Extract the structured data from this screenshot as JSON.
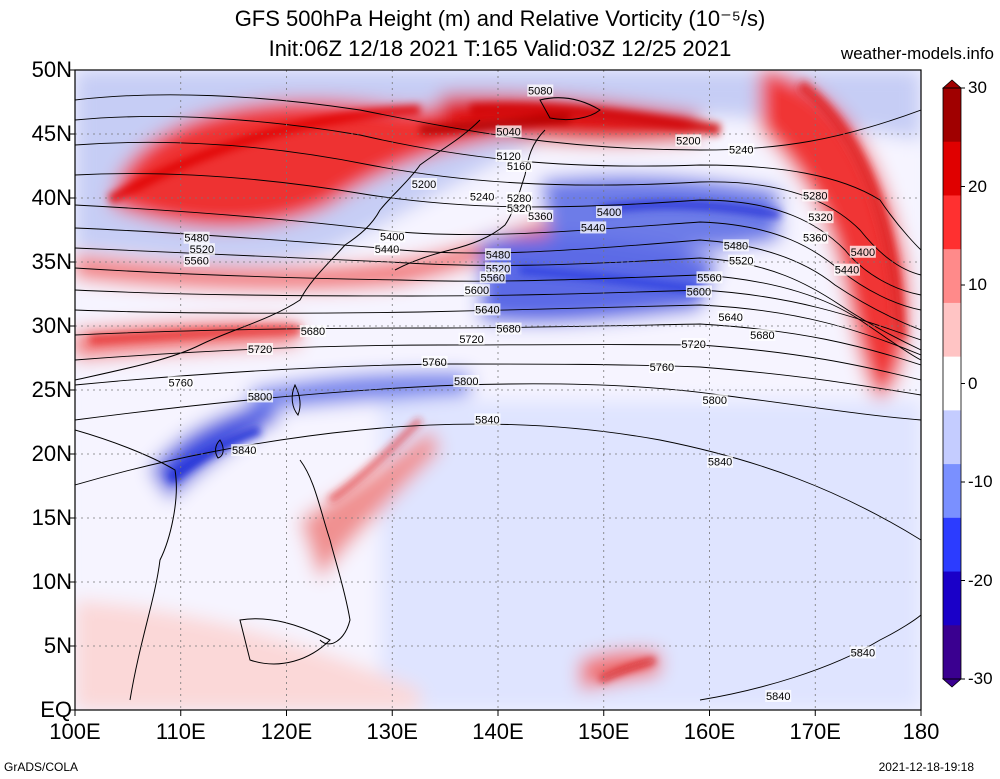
{
  "header": {
    "title_line1": "GFS 500hPa Height (m) and Relative Vorticity (10⁻⁵/s)",
    "title_line2": "Init:06Z 12/18 2021 T:165 Valid:03Z 12/25 2021",
    "site": "weather-models.info"
  },
  "map": {
    "region": "West Pacific / East Asia",
    "lon_range": [
      100,
      180
    ],
    "lat_range": [
      0,
      50
    ],
    "lat_labels": [
      "50N",
      "45N",
      "40N",
      "35N",
      "30N",
      "25N",
      "20N",
      "15N",
      "10N",
      "5N",
      "EQ"
    ],
    "lon_labels": [
      "100E",
      "110E",
      "120E",
      "130E",
      "140E",
      "150E",
      "160E",
      "170E",
      "180"
    ],
    "height_contours": [
      {
        "value": "5040",
        "label_lon": 141,
        "label_lat": 45.2
      },
      {
        "value": "5080",
        "label_lon": 144,
        "label_lat": 48.4
      },
      {
        "value": "5120",
        "label_lon": 141,
        "label_lat": 43.3
      },
      {
        "value": "5160",
        "label_lon": 142,
        "label_lat": 42.5
      },
      {
        "value": "5200",
        "label_lon": 133,
        "label_lat": 41.1
      },
      {
        "value": "5200",
        "label_lon": 158,
        "label_lat": 44.5
      },
      {
        "value": "5240",
        "label_lon": 138.5,
        "label_lat": 40.1
      },
      {
        "value": "5240",
        "label_lon": 163,
        "label_lat": 43.8
      },
      {
        "value": "5280",
        "label_lon": 142,
        "label_lat": 40
      },
      {
        "value": "5280",
        "label_lon": 170,
        "label_lat": 40.2
      },
      {
        "value": "5320",
        "label_lon": 142,
        "label_lat": 39.2
      },
      {
        "value": "5320",
        "label_lon": 170.5,
        "label_lat": 38.5
      },
      {
        "value": "5360",
        "label_lon": 144,
        "label_lat": 38.6
      },
      {
        "value": "5360",
        "label_lon": 170,
        "label_lat": 36.9
      },
      {
        "value": "5400",
        "label_lon": 130,
        "label_lat": 37
      },
      {
        "value": "5400",
        "label_lon": 150.5,
        "label_lat": 38.9
      },
      {
        "value": "5400",
        "label_lon": 174.5,
        "label_lat": 35.8
      },
      {
        "value": "5440",
        "label_lon": 129.5,
        "label_lat": 36
      },
      {
        "value": "5440",
        "label_lon": 149,
        "label_lat": 37.7
      },
      {
        "value": "5440",
        "label_lon": 173,
        "label_lat": 34.4
      },
      {
        "value": "5480",
        "label_lon": 111.5,
        "label_lat": 36.9
      },
      {
        "value": "5480",
        "label_lon": 140,
        "label_lat": 35.6
      },
      {
        "value": "5480",
        "label_lon": 162.5,
        "label_lat": 36.3
      },
      {
        "value": "5520",
        "label_lon": 112,
        "label_lat": 36
      },
      {
        "value": "5520",
        "label_lon": 140,
        "label_lat": 34.5
      },
      {
        "value": "5520",
        "label_lon": 163,
        "label_lat": 35.1
      },
      {
        "value": "5560",
        "label_lon": 111.5,
        "label_lat": 35.1
      },
      {
        "value": "5560",
        "label_lon": 139.5,
        "label_lat": 33.8
      },
      {
        "value": "5560",
        "label_lon": 160,
        "label_lat": 33.8
      },
      {
        "value": "5600",
        "label_lon": 138,
        "label_lat": 32.8
      },
      {
        "value": "5600",
        "label_lon": 159,
        "label_lat": 32.7
      },
      {
        "value": "5640",
        "label_lon": 139,
        "label_lat": 31.3
      },
      {
        "value": "5640",
        "label_lon": 162,
        "label_lat": 30.7
      },
      {
        "value": "5680",
        "label_lon": 122.5,
        "label_lat": 29.6
      },
      {
        "value": "5680",
        "label_lon": 141,
        "label_lat": 29.8
      },
      {
        "value": "5680",
        "label_lon": 165,
        "label_lat": 29.3
      },
      {
        "value": "5720",
        "label_lon": 117.5,
        "label_lat": 28.2
      },
      {
        "value": "5720",
        "label_lon": 137.5,
        "label_lat": 29
      },
      {
        "value": "5720",
        "label_lon": 158.5,
        "label_lat": 28.6
      },
      {
        "value": "5760",
        "label_lon": 110,
        "label_lat": 25.6
      },
      {
        "value": "5760",
        "label_lon": 134,
        "label_lat": 27.2
      },
      {
        "value": "5760",
        "label_lon": 155.5,
        "label_lat": 26.8
      },
      {
        "value": "5800",
        "label_lon": 117.5,
        "label_lat": 24.5
      },
      {
        "value": "5800",
        "label_lon": 137,
        "label_lat": 25.7
      },
      {
        "value": "5800",
        "label_lon": 160.5,
        "label_lat": 24.2
      },
      {
        "value": "5840",
        "label_lon": 116,
        "label_lat": 20.3
      },
      {
        "value": "5840",
        "label_lon": 139,
        "label_lat": 22.7
      },
      {
        "value": "5840",
        "label_lon": 161,
        "label_lat": 19.4
      },
      {
        "value": "5840",
        "label_lon": 174.5,
        "label_lat": 4.5
      },
      {
        "value": "5840",
        "label_lon": 166.5,
        "label_lat": 1.1
      }
    ]
  },
  "colorbar": {
    "ticks": [
      "30",
      "20",
      "10",
      "0",
      "-10",
      "-20",
      "-30"
    ],
    "colors": [
      "#3a0090",
      "#1a00c8",
      "#2c3cff",
      "#7a90ff",
      "#c4ccff",
      "#ffffff",
      "#ffc4c4",
      "#ff8a8a",
      "#ff3030",
      "#e00000",
      "#a00000"
    ]
  },
  "footer": {
    "credit": "GrADS/COLA",
    "timestamp": "2021-12-18-19:18"
  }
}
